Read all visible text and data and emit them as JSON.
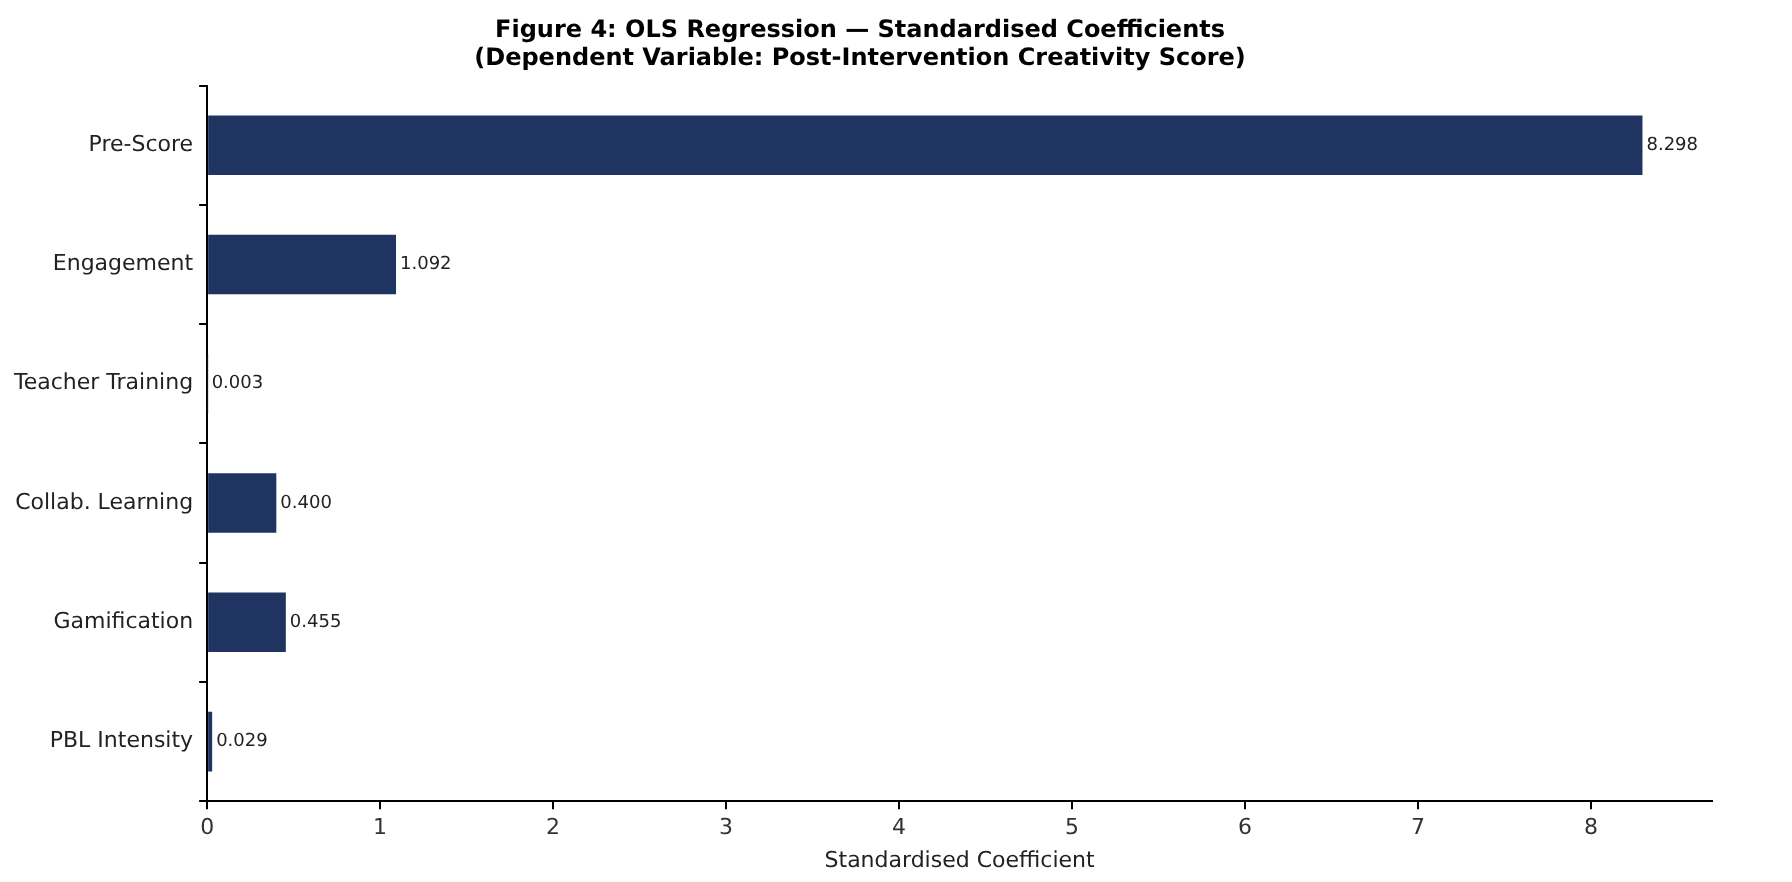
{
  "chart_data": {
    "type": "bar",
    "orientation": "horizontal",
    "title": "Figure 4: OLS Regression — Standardised Coefficients\n(Dependent Variable: Post-Intervention Creativity Score)",
    "xlabel": "Standardised Coefficient",
    "categories": [
      "Pre-Score",
      "Engagement",
      "Teacher Training",
      "Collab. Learning",
      "Gamification",
      "PBL Intensity"
    ],
    "values": [
      8.298,
      1.092,
      0.003,
      0.4,
      0.455,
      0.029
    ],
    "value_labels": [
      "8.298",
      "1.092",
      "0.003",
      "0.400",
      "0.455",
      "0.029"
    ],
    "color": "#1f3461",
    "xlim": [
      0,
      8.7
    ],
    "xticks": [
      0,
      1,
      2,
      3,
      4,
      5,
      6,
      7,
      8
    ],
    "grid": false,
    "legend": false
  }
}
